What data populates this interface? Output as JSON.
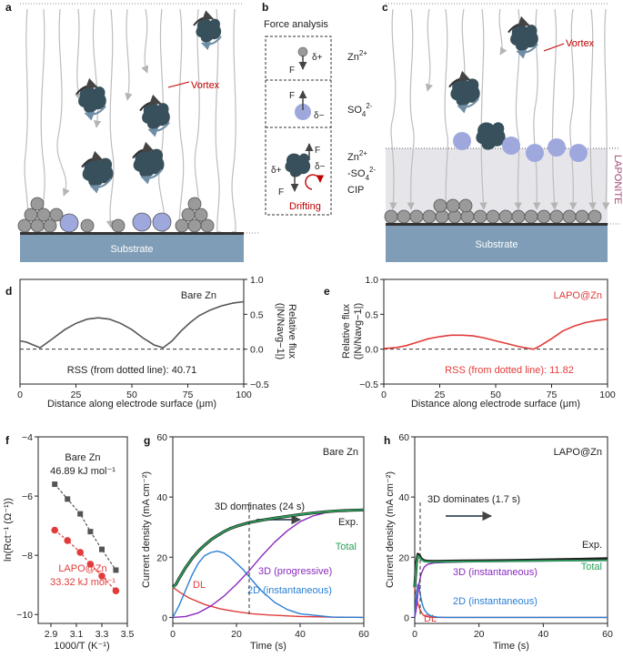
{
  "panels": {
    "a": "a",
    "b": "b",
    "c": "c",
    "d": "d",
    "e": "e",
    "f": "f",
    "g": "g",
    "h": "h"
  },
  "schematic": {
    "vortex_label": "Vortex",
    "substrate_label": "Substrate",
    "laponite_label": "LAPONITE"
  },
  "force_analysis": {
    "title": "Force analysis",
    "zn_label": "Zn",
    "zn_sup": "2+",
    "so4_label": "SO",
    "so4_sub": "4",
    "so4_sup": "2-",
    "cip_line1_base": "Zn",
    "cip_line1_sup": "2+",
    "cip_line2_base": "-SO",
    "cip_line2_sub": "4",
    "cip_line2_sup": "2-",
    "cip_line3": "CIP",
    "force_letter": "F",
    "delta_plus": "δ+",
    "delta_minus": "δ−",
    "drifting": "Drifting"
  },
  "colors": {
    "bare": "#555555",
    "lapo": "#e23b3b",
    "cluster": "#37505c",
    "substrate": "#7f9db7",
    "sulfate": "#9fa8dd",
    "zn_atom": "#9a9a9a",
    "laponite_band": "#e6e6ea",
    "laponite_text": "#a34a7a",
    "green": "#2ca05a",
    "purple": "#8a2bbf",
    "blue": "#2a7fd4"
  },
  "chart_data": [
    {
      "id": "d",
      "type": "line",
      "title": "Bare Zn",
      "xlabel": "Distance along electrode surface (μm)",
      "ylabel_line1": "Relative flux",
      "ylabel_line2": "(|N/Navg−1|)",
      "xlim": [
        0,
        100
      ],
      "ylim": [
        -0.5,
        1.0
      ],
      "xticks": [
        "0",
        "25",
        "50",
        "75",
        "100"
      ],
      "yticks": [
        "−0.5",
        "0.0",
        "0.5",
        "1.0"
      ],
      "annotation": "RSS (from dotted line): 40.71",
      "series": [
        {
          "name": "Bare Zn",
          "x": [
            0,
            3,
            6,
            9,
            15,
            20,
            25,
            30,
            35,
            40,
            45,
            50,
            55,
            60,
            64,
            68,
            72,
            76,
            80,
            85,
            90,
            95,
            100
          ],
          "y": [
            0.12,
            0.1,
            0.06,
            0.02,
            0.16,
            0.28,
            0.37,
            0.43,
            0.45,
            0.43,
            0.37,
            0.28,
            0.16,
            0.06,
            0.02,
            0.12,
            0.26,
            0.38,
            0.48,
            0.56,
            0.62,
            0.66,
            0.68
          ]
        }
      ]
    },
    {
      "id": "e",
      "type": "line",
      "title": "LAPO@Zn",
      "xlabel": "Distance along electrode surface (μm)",
      "ylabel_line1": "Relative flux",
      "ylabel_line2": "(|N/Navg−1|)",
      "xlim": [
        0,
        100
      ],
      "ylim": [
        -0.5,
        1.0
      ],
      "xticks": [
        "0",
        "25",
        "50",
        "75",
        "100"
      ],
      "yticks": [
        "−0.5",
        "0.0",
        "0.5",
        "1.0"
      ],
      "annotation": "RSS (from dotted line): 11.82",
      "series": [
        {
          "name": "LAPO@Zn",
          "x": [
            0,
            5,
            10,
            15,
            20,
            25,
            30,
            35,
            40,
            45,
            50,
            55,
            60,
            65,
            67,
            70,
            75,
            80,
            85,
            90,
            95,
            100
          ],
          "y": [
            0.01,
            0.02,
            0.05,
            0.1,
            0.15,
            0.18,
            0.2,
            0.2,
            0.19,
            0.16,
            0.12,
            0.08,
            0.04,
            0.01,
            0.0,
            0.05,
            0.15,
            0.26,
            0.33,
            0.38,
            0.41,
            0.43
          ]
        }
      ]
    },
    {
      "id": "f",
      "type": "scatter",
      "xlabel": "1000/T (K⁻¹)",
      "ylabel": "ln(Rct⁻¹ (Ω⁻¹))",
      "xlim": [
        2.8,
        3.5
      ],
      "ylim": [
        -10.3,
        -4
      ],
      "xticks": [
        "2.9",
        "3.1",
        "3.3",
        "3.5"
      ],
      "yticks": [
        "−4",
        "−6",
        "−8",
        "−10"
      ],
      "series": [
        {
          "name": "Bare Zn",
          "energy": "46.89 kJ mol⁻¹",
          "x": [
            2.93,
            3.03,
            3.13,
            3.21,
            3.3,
            3.41
          ],
          "y": [
            -5.6,
            -6.1,
            -6.6,
            -7.2,
            -7.8,
            -8.5
          ]
        },
        {
          "name": "LAPO@Zn",
          "energy": "33.32 kJ mol⁻¹",
          "x": [
            2.93,
            3.03,
            3.13,
            3.21,
            3.3,
            3.41
          ],
          "y": [
            -7.15,
            -7.5,
            -7.9,
            -8.3,
            -8.7,
            -9.2
          ]
        }
      ]
    },
    {
      "id": "g",
      "type": "line",
      "title": "Bare Zn",
      "xlabel": "Time (s)",
      "ylabel": "Current density (mA cm⁻²)",
      "xlim": [
        0,
        60
      ],
      "ylim": [
        -2,
        60
      ],
      "xticks": [
        "0",
        "20",
        "40",
        "60"
      ],
      "yticks": [
        "0",
        "20",
        "40",
        "60"
      ],
      "dominates_label": "3D dominates (24 s)",
      "dominates_x": 24,
      "series": [
        {
          "name": "Exp.",
          "x": [
            0,
            1,
            2,
            4,
            6,
            8,
            10,
            12,
            14,
            16,
            18,
            20,
            24,
            28,
            32,
            36,
            40,
            44,
            48,
            52,
            56,
            60
          ],
          "y": [
            10,
            11,
            13,
            16.5,
            19.5,
            22,
            24,
            25.8,
            27.2,
            28.5,
            29.5,
            30.3,
            31.5,
            32.3,
            33,
            33.6,
            34.2,
            34.7,
            35.1,
            35.4,
            35.6,
            35.7
          ]
        },
        {
          "name": "Total",
          "x": [
            0,
            1,
            2,
            4,
            6,
            8,
            10,
            12,
            14,
            16,
            18,
            20,
            24,
            28,
            32,
            36,
            40,
            44,
            48,
            52,
            56,
            60
          ],
          "y": [
            9.8,
            11,
            13,
            16.5,
            19.5,
            22,
            24,
            25.8,
            27.2,
            28.5,
            29.5,
            30.3,
            31.5,
            32.3,
            33,
            33.6,
            34.2,
            34.7,
            35.1,
            35.4,
            35.6,
            35.7
          ]
        },
        {
          "name": "DL",
          "x": [
            0,
            2,
            5,
            10,
            15,
            20,
            25,
            30,
            40,
            50,
            60
          ],
          "y": [
            10,
            8.5,
            6.5,
            4.3,
            2.8,
            1.9,
            1.2,
            0.8,
            0.3,
            0.1,
            0
          ]
        },
        {
          "name": "2D (instantaneous)",
          "x": [
            0,
            2,
            4,
            6,
            8,
            10,
            12,
            14,
            16,
            18,
            20,
            22,
            24,
            26,
            28,
            32,
            36,
            40,
            50,
            60
          ],
          "y": [
            0,
            4,
            9,
            14,
            18,
            20.5,
            21.6,
            22,
            21.4,
            20,
            18,
            16,
            13.5,
            11,
            8.7,
            5,
            2.6,
            1.2,
            0.1,
            0
          ]
        },
        {
          "name": "3D (progressive)",
          "x": [
            0,
            4,
            8,
            12,
            16,
            20,
            24,
            28,
            32,
            36,
            40,
            44,
            48,
            52,
            56,
            60
          ],
          "y": [
            0,
            0.3,
            1.5,
            3.8,
            7,
            11,
            15.5,
            20.5,
            25,
            28.8,
            31.8,
            33.7,
            34.8,
            35.3,
            35.5,
            35.6
          ]
        }
      ],
      "labels": {
        "exp": "Exp.",
        "total": "Total",
        "dl": "DL",
        "d2": "2D (instantaneous)",
        "d3": "3D (progressive)"
      }
    },
    {
      "id": "h",
      "type": "line",
      "title": "LAPO@Zn",
      "xlabel": "Time (s)",
      "ylabel": "Current density (mA cm⁻²)",
      "xlim": [
        0,
        60
      ],
      "ylim": [
        -2,
        60
      ],
      "xticks": [
        "0",
        "20",
        "40",
        "60"
      ],
      "yticks": [
        "0",
        "20",
        "40",
        "60"
      ],
      "dominates_label": "3D dominates (1.7 s)",
      "dominates_x": 1.7,
      "series": [
        {
          "name": "Exp.",
          "x": [
            0,
            0.5,
            1,
            1.5,
            2,
            3,
            4,
            6,
            10,
            20,
            30,
            40,
            50,
            60
          ],
          "y": [
            10,
            18,
            21,
            20.5,
            19.5,
            18.8,
            18.7,
            18.6,
            18.7,
            18.8,
            18.9,
            19.1,
            19.3,
            19.5
          ]
        },
        {
          "name": "Total",
          "x": [
            0,
            0.5,
            1,
            1.5,
            2,
            3,
            4,
            6,
            10,
            20,
            30,
            40,
            50,
            60
          ],
          "y": [
            10,
            17.5,
            20.5,
            20,
            19.2,
            18.6,
            18.5,
            18.4,
            18.5,
            18.6,
            18.7,
            18.8,
            18.9,
            19.0
          ]
        },
        {
          "name": "DL",
          "x": [
            0,
            0.5,
            1,
            1.5,
            2,
            2.5,
            3,
            4,
            6,
            10,
            60
          ],
          "y": [
            10,
            7,
            4.5,
            3,
            1.8,
            1,
            0.5,
            0.2,
            0,
            0,
            0
          ]
        },
        {
          "name": "2D (instantaneous)",
          "x": [
            0,
            0.5,
            1,
            1.5,
            2,
            2.5,
            3,
            4,
            5,
            7,
            10,
            60
          ],
          "y": [
            0,
            8,
            11,
            9,
            6,
            4,
            2.5,
            1.2,
            0.5,
            0.1,
            0,
            0
          ]
        },
        {
          "name": "3D (instantaneous)",
          "x": [
            0,
            0.5,
            1,
            1.5,
            2,
            3,
            4,
            6,
            10,
            20,
            30,
            40,
            50,
            60
          ],
          "y": [
            0,
            3,
            8,
            12,
            14.5,
            16.8,
            17.6,
            18.1,
            18.3,
            18.5,
            18.6,
            18.7,
            18.8,
            18.9
          ]
        }
      ],
      "labels": {
        "exp": "Exp.",
        "total": "Total",
        "dl": "DL",
        "d2": "2D (instantaneous)",
        "d3": "3D (instantaneous)"
      }
    }
  ]
}
